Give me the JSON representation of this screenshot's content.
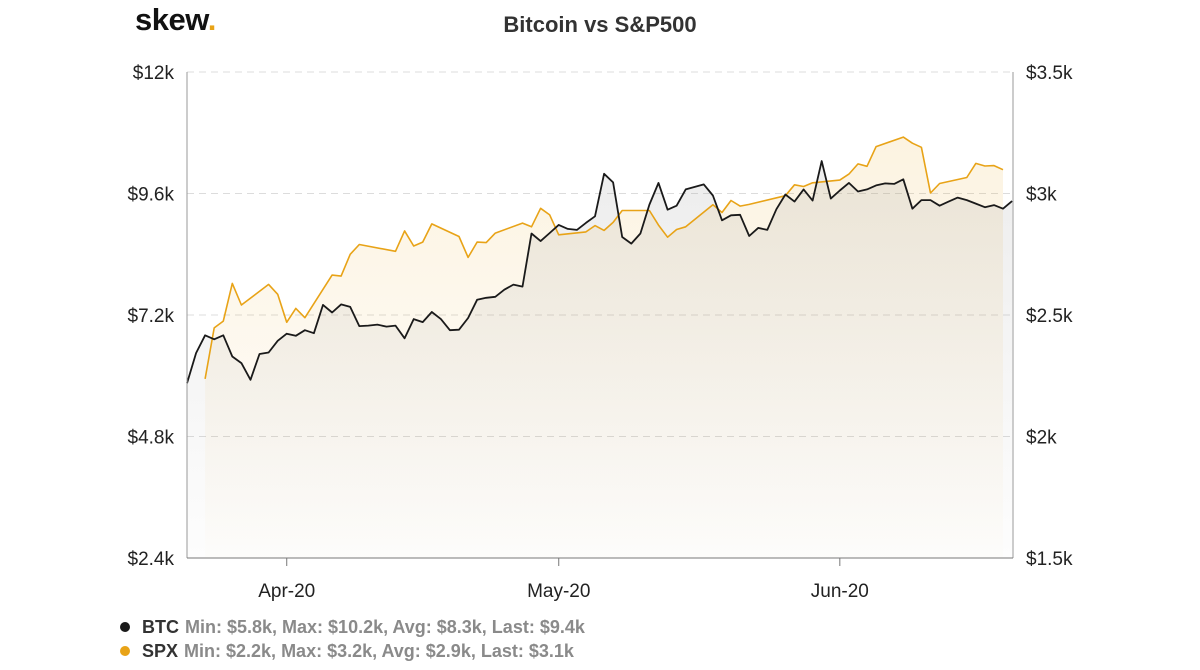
{
  "logo": {
    "text": "skew",
    "dot": "."
  },
  "chart_data": {
    "type": "line",
    "title": "Bitcoin vs S&P500",
    "x_tick_labels": [
      "Apr-20",
      "May-20",
      "Jun-20"
    ],
    "y_left": {
      "ylim": [
        2400,
        12000
      ],
      "tick_values": [
        2400,
        4800,
        7200,
        9600,
        12000
      ],
      "tick_labels": [
        "$2.4k",
        "$4.8k",
        "$7.2k",
        "$9.6k",
        "$12k"
      ]
    },
    "y_right": {
      "ylim": [
        1500,
        3500
      ],
      "tick_values": [
        1500,
        2000,
        2500,
        3000,
        3500
      ],
      "tick_labels": [
        "$1.5k",
        "$2k",
        "$2.5k",
        "$3k",
        "$3.5k"
      ]
    },
    "grid": true,
    "legend_position": "bottom-left",
    "series": [
      {
        "name": "BTC",
        "axis": "left",
        "color": "#1a1a1a",
        "stats": "Min: $5.8k, Max: $10.2k, Avg: $8.3k, Last: $9.4k",
        "points": [
          [
            "2020-03-21",
            5850
          ],
          [
            "2020-03-22",
            6450
          ],
          [
            "2020-03-23",
            6800
          ],
          [
            "2020-03-24",
            6720
          ],
          [
            "2020-03-25",
            6800
          ],
          [
            "2020-03-26",
            6380
          ],
          [
            "2020-03-27",
            6250
          ],
          [
            "2020-03-28",
            5920
          ],
          [
            "2020-03-29",
            6430
          ],
          [
            "2020-03-30",
            6460
          ],
          [
            "2020-03-31",
            6690
          ],
          [
            "2020-04-01",
            6830
          ],
          [
            "2020-04-02",
            6790
          ],
          [
            "2020-04-03",
            6900
          ],
          [
            "2020-04-04",
            6840
          ],
          [
            "2020-04-05",
            7400
          ],
          [
            "2020-04-06",
            7250
          ],
          [
            "2020-04-07",
            7410
          ],
          [
            "2020-04-08",
            7360
          ],
          [
            "2020-04-09",
            6980
          ],
          [
            "2020-04-10",
            6990
          ],
          [
            "2020-04-11",
            7010
          ],
          [
            "2020-04-12",
            6970
          ],
          [
            "2020-04-13",
            6990
          ],
          [
            "2020-04-14",
            6740
          ],
          [
            "2020-04-15",
            7120
          ],
          [
            "2020-04-16",
            7060
          ],
          [
            "2020-04-17",
            7260
          ],
          [
            "2020-04-18",
            7120
          ],
          [
            "2020-04-19",
            6900
          ],
          [
            "2020-04-20",
            6910
          ],
          [
            "2020-04-21",
            7140
          ],
          [
            "2020-04-22",
            7500
          ],
          [
            "2020-04-23",
            7540
          ],
          [
            "2020-04-24",
            7560
          ],
          [
            "2020-04-25",
            7700
          ],
          [
            "2020-04-26",
            7800
          ],
          [
            "2020-04-27",
            7760
          ],
          [
            "2020-04-28",
            8810
          ],
          [
            "2020-04-29",
            8660
          ],
          [
            "2020-04-30",
            8820
          ],
          [
            "2020-05-01",
            8980
          ],
          [
            "2020-05-02",
            8900
          ],
          [
            "2020-05-03",
            8880
          ],
          [
            "2020-05-04",
            9020
          ],
          [
            "2020-05-05",
            9150
          ],
          [
            "2020-05-06",
            9990
          ],
          [
            "2020-05-07",
            9820
          ],
          [
            "2020-05-08",
            8740
          ],
          [
            "2020-05-09",
            8610
          ],
          [
            "2020-05-10",
            8810
          ],
          [
            "2020-05-11",
            9380
          ],
          [
            "2020-05-12",
            9810
          ],
          [
            "2020-05-13",
            9280
          ],
          [
            "2020-05-14",
            9360
          ],
          [
            "2020-05-15",
            9680
          ],
          [
            "2020-05-16",
            9730
          ],
          [
            "2020-05-17",
            9780
          ],
          [
            "2020-05-18",
            9560
          ],
          [
            "2020-05-19",
            9070
          ],
          [
            "2020-05-20",
            9170
          ],
          [
            "2020-05-21",
            9180
          ],
          [
            "2020-05-22",
            8760
          ],
          [
            "2020-05-23",
            8920
          ],
          [
            "2020-05-24",
            8880
          ],
          [
            "2020-05-25",
            9290
          ],
          [
            "2020-05-26",
            9580
          ],
          [
            "2020-05-27",
            9440
          ],
          [
            "2020-05-28",
            9680
          ],
          [
            "2020-05-29",
            9460
          ],
          [
            "2020-05-30",
            10240
          ],
          [
            "2020-05-31",
            9500
          ],
          [
            "2020-06-01",
            9660
          ],
          [
            "2020-06-02",
            9810
          ],
          [
            "2020-06-03",
            9640
          ],
          [
            "2020-06-04",
            9680
          ],
          [
            "2020-06-05",
            9760
          ],
          [
            "2020-06-06",
            9800
          ],
          [
            "2020-06-07",
            9790
          ],
          [
            "2020-06-08",
            9880
          ],
          [
            "2020-06-09",
            9300
          ],
          [
            "2020-06-10",
            9470
          ],
          [
            "2020-06-11",
            9470
          ],
          [
            "2020-06-12",
            9360
          ],
          [
            "2020-06-13",
            9440
          ],
          [
            "2020-06-14",
            9520
          ],
          [
            "2020-06-15",
            9470
          ],
          [
            "2020-06-16",
            9400
          ],
          [
            "2020-06-17",
            9330
          ],
          [
            "2020-06-18",
            9370
          ],
          [
            "2020-06-19",
            9300
          ],
          [
            "2020-06-20",
            9450
          ]
        ]
      },
      {
        "name": "SPX",
        "axis": "right",
        "color": "#e8a317",
        "stats": "Min: $2.2k, Max: $3.2k, Avg: $2.9k, Last: $3.1k",
        "points": [
          [
            "2020-03-23",
            2237
          ],
          [
            "2020-03-24",
            2447
          ],
          [
            "2020-03-25",
            2475
          ],
          [
            "2020-03-26",
            2630
          ],
          [
            "2020-03-27",
            2541
          ],
          [
            "2020-03-30",
            2626
          ],
          [
            "2020-03-31",
            2585
          ],
          [
            "2020-04-01",
            2470
          ],
          [
            "2020-04-02",
            2527
          ],
          [
            "2020-04-03",
            2489
          ],
          [
            "2020-04-06",
            2664
          ],
          [
            "2020-04-07",
            2660
          ],
          [
            "2020-04-08",
            2750
          ],
          [
            "2020-04-09",
            2790
          ],
          [
            "2020-04-13",
            2762
          ],
          [
            "2020-04-14",
            2846
          ],
          [
            "2020-04-15",
            2784
          ],
          [
            "2020-04-16",
            2800
          ],
          [
            "2020-04-17",
            2875
          ],
          [
            "2020-04-20",
            2823
          ],
          [
            "2020-04-21",
            2737
          ],
          [
            "2020-04-22",
            2800
          ],
          [
            "2020-04-23",
            2798
          ],
          [
            "2020-04-24",
            2837
          ],
          [
            "2020-04-27",
            2878
          ],
          [
            "2020-04-28",
            2863
          ],
          [
            "2020-04-29",
            2939
          ],
          [
            "2020-04-30",
            2912
          ],
          [
            "2020-05-01",
            2830
          ],
          [
            "2020-05-04",
            2842
          ],
          [
            "2020-05-05",
            2868
          ],
          [
            "2020-05-06",
            2848
          ],
          [
            "2020-05-07",
            2881
          ],
          [
            "2020-05-08",
            2930
          ],
          [
            "2020-05-11",
            2930
          ],
          [
            "2020-05-12",
            2870
          ],
          [
            "2020-05-13",
            2820
          ],
          [
            "2020-05-14",
            2852
          ],
          [
            "2020-05-15",
            2863
          ],
          [
            "2020-05-18",
            2954
          ],
          [
            "2020-05-19",
            2922
          ],
          [
            "2020-05-20",
            2971
          ],
          [
            "2020-05-21",
            2948
          ],
          [
            "2020-05-22",
            2955
          ],
          [
            "2020-05-26",
            2991
          ],
          [
            "2020-05-27",
            3036
          ],
          [
            "2020-05-28",
            3029
          ],
          [
            "2020-05-29",
            3044
          ],
          [
            "2020-06-01",
            3055
          ],
          [
            "2020-06-02",
            3080
          ],
          [
            "2020-06-03",
            3122
          ],
          [
            "2020-06-04",
            3112
          ],
          [
            "2020-06-05",
            3193
          ],
          [
            "2020-06-08",
            3232
          ],
          [
            "2020-06-09",
            3207
          ],
          [
            "2020-06-10",
            3190
          ],
          [
            "2020-06-11",
            3002
          ],
          [
            "2020-06-12",
            3041
          ],
          [
            "2020-06-15",
            3066
          ],
          [
            "2020-06-16",
            3124
          ],
          [
            "2020-06-17",
            3113
          ],
          [
            "2020-06-18",
            3115
          ],
          [
            "2020-06-19",
            3098
          ]
        ]
      }
    ]
  }
}
